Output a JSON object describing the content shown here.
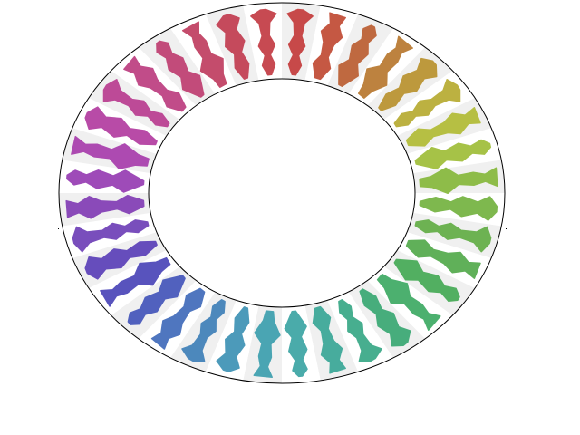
{
  "ring": {
    "segment_count": 36,
    "band_fill": "#f0f0f0",
    "band_alt_fill": "#ffffff",
    "outline_color": "#000000",
    "background": "#ffffff"
  },
  "glyphs": [
    {
      "color": "#c43b3b"
    },
    {
      "color": "#c14a34"
    },
    {
      "color": "#bb5e32"
    },
    {
      "color": "#b8782f"
    },
    {
      "color": "#b9922e"
    },
    {
      "color": "#b7ab31"
    },
    {
      "color": "#b2bb35"
    },
    {
      "color": "#9fbd38"
    },
    {
      "color": "#86b83b"
    },
    {
      "color": "#74b23f"
    },
    {
      "color": "#62ad45"
    },
    {
      "color": "#53aa4c"
    },
    {
      "color": "#45aa55"
    },
    {
      "color": "#3daa63"
    },
    {
      "color": "#39a873"
    },
    {
      "color": "#38a886"
    },
    {
      "color": "#39a797"
    },
    {
      "color": "#3ba4a3"
    },
    {
      "color": "#3c9fae"
    },
    {
      "color": "#3d92b5"
    },
    {
      "color": "#3f80b8"
    },
    {
      "color": "#416bba"
    },
    {
      "color": "#4455ba"
    },
    {
      "color": "#4a45b8"
    },
    {
      "color": "#5b40b8"
    },
    {
      "color": "#6e3fb7"
    },
    {
      "color": "#823db5"
    },
    {
      "color": "#963cb2"
    },
    {
      "color": "#a83cac"
    },
    {
      "color": "#b33ca0"
    },
    {
      "color": "#b93d90"
    },
    {
      "color": "#bc3d80"
    },
    {
      "color": "#bf3e70"
    },
    {
      "color": "#c03d60"
    },
    {
      "color": "#c23c50"
    },
    {
      "color": "#c33b44"
    }
  ]
}
